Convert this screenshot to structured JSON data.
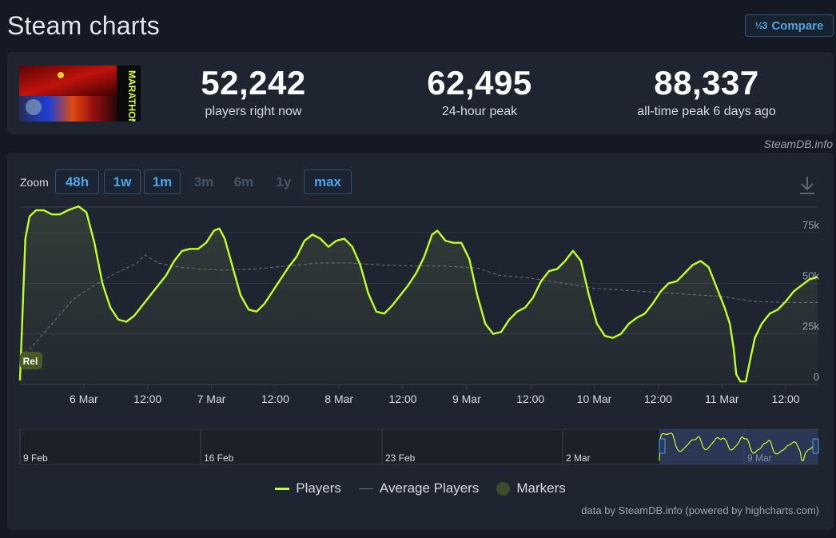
{
  "header": {
    "title": "Steam charts",
    "compare_icon": "½3",
    "compare_label": "Compare"
  },
  "game": {
    "thumbnail_text": "MARATHON"
  },
  "stats": [
    {
      "value": "52,242",
      "label": "players right now"
    },
    {
      "value": "62,495",
      "label": "24-hour peak"
    },
    {
      "value": "88,337",
      "label": "all-time peak 6 days ago"
    }
  ],
  "attribution": "SteamDB.info",
  "zoom": {
    "label": "Zoom",
    "buttons": [
      {
        "label": "48h",
        "enabled": true
      },
      {
        "label": "1w",
        "enabled": true
      },
      {
        "label": "1m",
        "enabled": true
      },
      {
        "label": "3m",
        "enabled": false
      },
      {
        "label": "6m",
        "enabled": false
      },
      {
        "label": "1y",
        "enabled": false
      },
      {
        "label": "max",
        "enabled": true
      }
    ]
  },
  "chart_data": {
    "type": "line",
    "x_unit": "hours since 2026-03-05 12:00",
    "x_range": [
      0,
      150
    ],
    "ylim": [
      0,
      90000
    ],
    "yticks": [
      0,
      25000,
      50000,
      75000
    ],
    "ytick_labels": [
      "0",
      "25k",
      "50k",
      "75k"
    ],
    "xticks": [
      {
        "t": 12,
        "label": "6 Mar"
      },
      {
        "t": 24,
        "label": "12:00"
      },
      {
        "t": 36,
        "label": "7 Mar"
      },
      {
        "t": 48,
        "label": "12:00"
      },
      {
        "t": 60,
        "label": "8 Mar"
      },
      {
        "t": 72,
        "label": "12:00"
      },
      {
        "t": 84,
        "label": "9 Mar"
      },
      {
        "t": 96,
        "label": "12:00"
      },
      {
        "t": 108,
        "label": "10 Mar"
      },
      {
        "t": 120,
        "label": "12:00"
      },
      {
        "t": 132,
        "label": "11 Mar"
      },
      {
        "t": 144,
        "label": "12:00"
      }
    ],
    "series": [
      {
        "name": "Players",
        "color": "#bfff2a",
        "points": [
          [
            0,
            2000
          ],
          [
            0.4,
            30000
          ],
          [
            1,
            72000
          ],
          [
            1.8,
            83000
          ],
          [
            3,
            86000
          ],
          [
            4.5,
            86000
          ],
          [
            6,
            84000
          ],
          [
            7.5,
            84000
          ],
          [
            9,
            86000
          ],
          [
            11,
            88000
          ],
          [
            12.5,
            85000
          ],
          [
            14,
            70000
          ],
          [
            15.5,
            50000
          ],
          [
            17,
            38000
          ],
          [
            18.5,
            32000
          ],
          [
            20,
            31000
          ],
          [
            21.5,
            34000
          ],
          [
            23,
            39000
          ],
          [
            24.5,
            44000
          ],
          [
            26,
            49000
          ],
          [
            27.5,
            54000
          ],
          [
            29,
            61000
          ],
          [
            30.5,
            66000
          ],
          [
            32,
            67000
          ],
          [
            33.5,
            67000
          ],
          [
            35,
            70000
          ],
          [
            36.5,
            76000
          ],
          [
            37.5,
            77000
          ],
          [
            38.5,
            72000
          ],
          [
            40,
            58000
          ],
          [
            41.5,
            44000
          ],
          [
            43,
            37000
          ],
          [
            44.5,
            36000
          ],
          [
            46,
            40000
          ],
          [
            47.5,
            46000
          ],
          [
            49,
            52000
          ],
          [
            50.5,
            58000
          ],
          [
            52,
            63000
          ],
          [
            53.5,
            71000
          ],
          [
            55,
            74000
          ],
          [
            56.5,
            72000
          ],
          [
            58,
            68000
          ],
          [
            59.5,
            71000
          ],
          [
            61,
            72000
          ],
          [
            62.5,
            68000
          ],
          [
            64,
            59000
          ],
          [
            65.5,
            45000
          ],
          [
            67,
            36000
          ],
          [
            68.5,
            35000
          ],
          [
            70,
            39000
          ],
          [
            71.5,
            44000
          ],
          [
            73,
            49000
          ],
          [
            74.5,
            55000
          ],
          [
            76,
            63000
          ],
          [
            77.5,
            74000
          ],
          [
            78.5,
            76000
          ],
          [
            80,
            71000
          ],
          [
            81.5,
            70000
          ],
          [
            83,
            70000
          ],
          [
            84.5,
            62000
          ],
          [
            86,
            44000
          ],
          [
            87.5,
            30000
          ],
          [
            89,
            25000
          ],
          [
            90.5,
            26000
          ],
          [
            92,
            32000
          ],
          [
            93.5,
            36000
          ],
          [
            95,
            38000
          ],
          [
            96.5,
            43000
          ],
          [
            98,
            51000
          ],
          [
            99.5,
            56000
          ],
          [
            101,
            57000
          ],
          [
            102.5,
            61000
          ],
          [
            104,
            66000
          ],
          [
            105.5,
            61000
          ],
          [
            107,
            44000
          ],
          [
            108.5,
            30000
          ],
          [
            110,
            24000
          ],
          [
            111.5,
            23000
          ],
          [
            113,
            25000
          ],
          [
            114.5,
            30000
          ],
          [
            116,
            33000
          ],
          [
            117.5,
            35000
          ],
          [
            119,
            40000
          ],
          [
            120.5,
            46000
          ],
          [
            122,
            50000
          ],
          [
            123.5,
            51000
          ],
          [
            125,
            55000
          ],
          [
            126.5,
            59000
          ],
          [
            128,
            61000
          ],
          [
            129.5,
            58000
          ],
          [
            131,
            48000
          ],
          [
            132.5,
            38000
          ],
          [
            133.5,
            30000
          ],
          [
            134.2,
            18000
          ],
          [
            134.7,
            5000
          ],
          [
            135.5,
            1500
          ],
          [
            136.5,
            1500
          ],
          [
            137.3,
            12000
          ],
          [
            138.2,
            23000
          ],
          [
            139.5,
            30000
          ],
          [
            141,
            35000
          ],
          [
            142.5,
            37000
          ],
          [
            144,
            41000
          ],
          [
            145.5,
            46000
          ],
          [
            147,
            49000
          ],
          [
            148.5,
            52000
          ],
          [
            150,
            53000
          ]
        ]
      },
      {
        "name": "Average Players",
        "color": "#6a7380",
        "points": [
          [
            0,
            14000
          ],
          [
            2,
            18000
          ],
          [
            6,
            30000
          ],
          [
            10,
            42000
          ],
          [
            14,
            49000
          ],
          [
            18,
            55000
          ],
          [
            22,
            60000
          ],
          [
            23.5,
            64000
          ],
          [
            26,
            60000
          ],
          [
            30,
            58000
          ],
          [
            34,
            57000
          ],
          [
            38,
            56500
          ],
          [
            44,
            57000
          ],
          [
            50,
            58500
          ],
          [
            56,
            60000
          ],
          [
            62,
            60000
          ],
          [
            68,
            59000
          ],
          [
            74,
            58500
          ],
          [
            80,
            58500
          ],
          [
            86,
            57500
          ],
          [
            90,
            54000
          ],
          [
            96,
            52500
          ],
          [
            102,
            50000
          ],
          [
            108,
            47500
          ],
          [
            114,
            46500
          ],
          [
            120,
            45500
          ],
          [
            126,
            44500
          ],
          [
            132,
            43500
          ],
          [
            138,
            41000
          ],
          [
            144,
            40500
          ],
          [
            150,
            40500
          ]
        ]
      }
    ],
    "annotations": [
      {
        "t": 0,
        "label": "Rel"
      }
    ],
    "navigator": {
      "labels": [
        "9 Feb",
        "16 Feb",
        "23 Feb",
        "2 Mar",
        "9 Mar"
      ],
      "selected_range": [
        "5 Mar",
        "11 Mar"
      ]
    }
  },
  "legend": [
    {
      "name": "Players"
    },
    {
      "name": "Average Players"
    },
    {
      "name": "Markers"
    }
  ],
  "credits": "data by SteamDB.info (powered by highcharts.com)"
}
